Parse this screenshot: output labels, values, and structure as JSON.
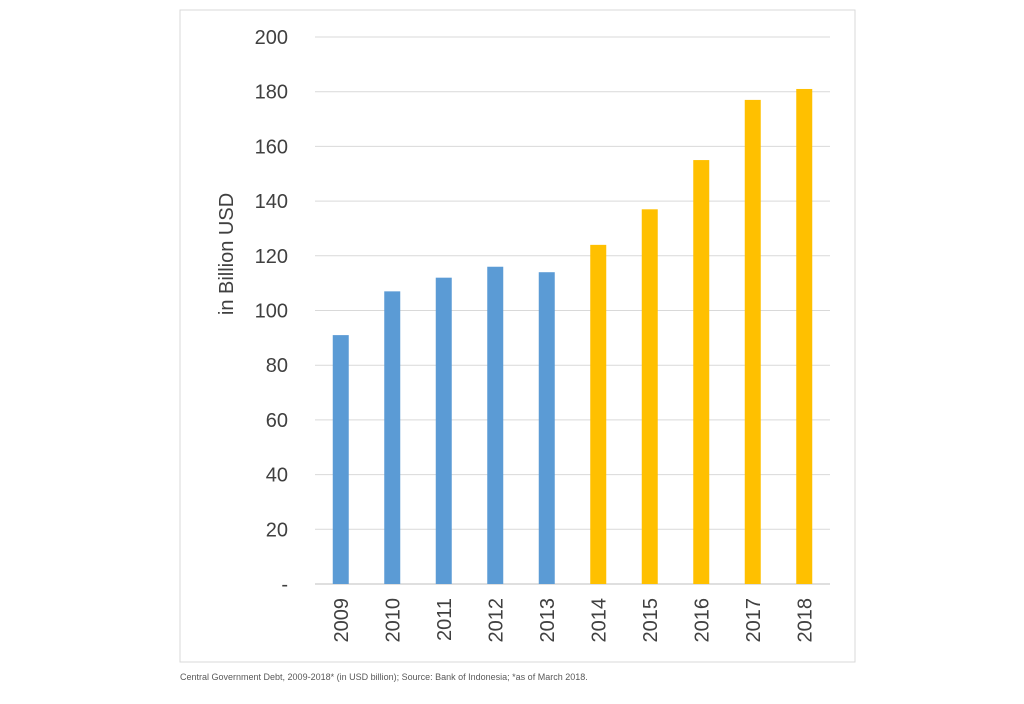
{
  "caption": "Central Government Debt, 2009-2018* (in USD billion); Source: Bank of Indonesia; *as of March 2018.",
  "chart_data": {
    "type": "bar",
    "ylabel": "in Billion USD",
    "xlabel": "",
    "ylim": [
      0,
      200
    ],
    "yticks": [
      0,
      20,
      40,
      60,
      80,
      100,
      120,
      140,
      160,
      180,
      200
    ],
    "ytick_labels": [
      "-",
      "20",
      "40",
      "60",
      "80",
      "100",
      "120",
      "140",
      "160",
      "180",
      "200"
    ],
    "grid": true,
    "categories": [
      "2009",
      "2010",
      "2011",
      "2012",
      "2013",
      "2014",
      "2015",
      "2016",
      "2017",
      "2018"
    ],
    "values": [
      91,
      107,
      112,
      116,
      114,
      124,
      137,
      155,
      177,
      181
    ],
    "colors": [
      "#5b9bd5",
      "#5b9bd5",
      "#5b9bd5",
      "#5b9bd5",
      "#5b9bd5",
      "#ffc000",
      "#ffc000",
      "#ffc000",
      "#ffc000",
      "#ffc000"
    ]
  },
  "colors": {
    "blue": "#5b9bd5",
    "gold": "#ffc000",
    "grid": "#d9d9d9",
    "text": "#404040"
  }
}
